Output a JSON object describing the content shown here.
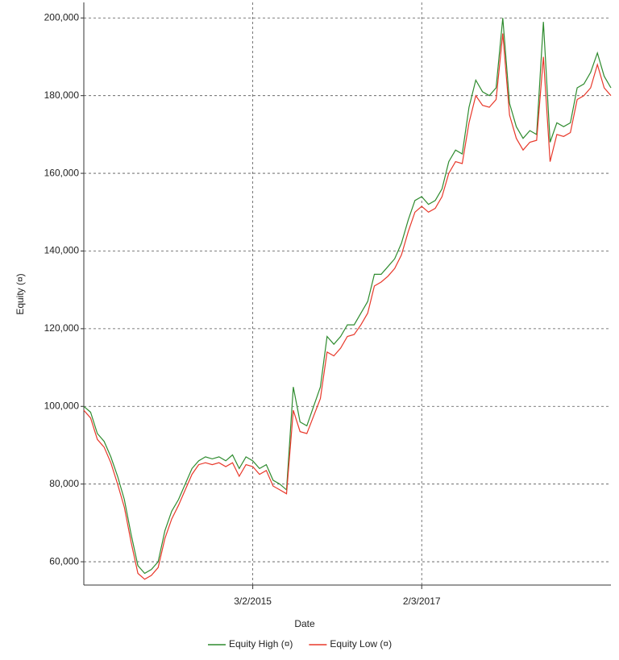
{
  "chart_data": {
    "type": "line",
    "x_label": "Date",
    "y_label": "Equity (¤)",
    "categories": [
      null,
      null,
      null,
      null,
      null,
      null,
      null,
      null,
      null,
      null,
      null,
      null,
      null,
      null,
      null,
      null,
      null,
      null,
      null,
      null,
      null,
      null,
      null,
      null,
      null,
      "3/2/2015",
      null,
      null,
      null,
      null,
      null,
      null,
      null,
      null,
      null,
      null,
      null,
      null,
      null,
      null,
      null,
      null,
      null,
      null,
      null,
      null,
      null,
      null,
      null,
      null,
      "2/3/2017",
      null,
      null,
      null,
      null,
      null,
      null,
      null,
      null,
      null,
      null,
      null,
      null,
      null,
      null,
      null,
      null,
      null,
      null,
      null,
      null,
      null,
      null,
      null,
      null,
      null,
      null,
      null,
      null
    ],
    "series": [
      {
        "name": "Equity High (¤)",
        "color": "#2e8b2e",
        "values": [
          100000,
          98500,
          93000,
          91000,
          87000,
          82000,
          76000,
          67000,
          59000,
          57000,
          58000,
          60000,
          68000,
          73000,
          76000,
          80000,
          84000,
          86000,
          87000,
          86500,
          87000,
          86000,
          87500,
          84000,
          87000,
          86000,
          84000,
          85000,
          81000,
          80000,
          78500,
          105000,
          96000,
          95000,
          100000,
          105000,
          118000,
          116000,
          118000,
          121000,
          121000,
          124000,
          127000,
          134000,
          134000,
          136000,
          138000,
          142000,
          148000,
          153000,
          154000,
          152000,
          153000,
          156000,
          163000,
          166000,
          165000,
          177000,
          184000,
          181000,
          180000,
          182000,
          200000,
          178000,
          172000,
          169000,
          171000,
          170000,
          199000,
          168000,
          173000,
          172000,
          173000,
          182000,
          183000,
          186000,
          191000,
          185000,
          182000
        ]
      },
      {
        "name": "Equity Low (¤)",
        "color": "#e8382a",
        "values": [
          99000,
          97000,
          91500,
          89500,
          85500,
          80000,
          74000,
          65000,
          57000,
          55500,
          56500,
          58500,
          66000,
          71000,
          74500,
          78500,
          82500,
          85000,
          85500,
          85000,
          85500,
          84500,
          85500,
          82000,
          85000,
          84500,
          82500,
          83500,
          79500,
          78500,
          77500,
          99000,
          93500,
          93000,
          97500,
          102000,
          114000,
          113000,
          115000,
          118000,
          118500,
          121000,
          124000,
          131000,
          132000,
          133500,
          135500,
          139000,
          145000,
          150000,
          151500,
          150000,
          151000,
          154000,
          160000,
          163000,
          162500,
          173000,
          180000,
          177500,
          177000,
          179000,
          196000,
          175000,
          169000,
          166000,
          168000,
          168500,
          190000,
          163000,
          170000,
          169500,
          170500,
          179000,
          180000,
          182000,
          188000,
          182000,
          180000
        ]
      }
    ],
    "ylim": [
      54000,
      204000
    ],
    "yticks": [
      {
        "value": 60000,
        "label": "60,000"
      },
      {
        "value": 80000,
        "label": "80,000"
      },
      {
        "value": 100000,
        "label": "100,000"
      },
      {
        "value": 120000,
        "label": "120,000"
      },
      {
        "value": 140000,
        "label": "140,000"
      },
      {
        "value": 160000,
        "label": "160,000"
      },
      {
        "value": 180000,
        "label": "180,000"
      },
      {
        "value": 200000,
        "label": "200,000"
      }
    ],
    "grid": true,
    "legend": "bottom"
  }
}
